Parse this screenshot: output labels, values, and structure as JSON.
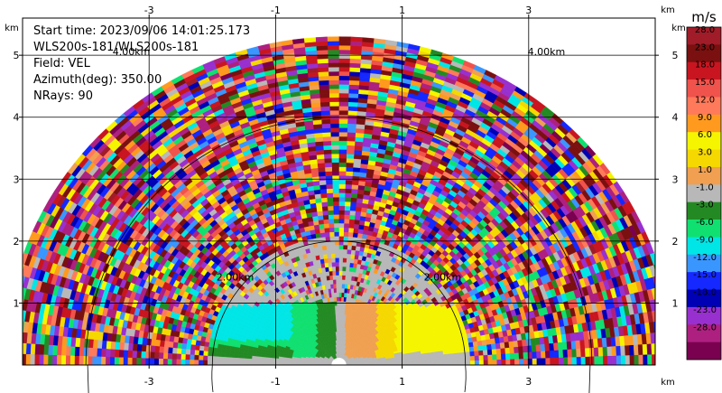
{
  "chart_data": {
    "type": "heatmap",
    "subtype": "radar-rhi-velocity",
    "info_lines": [
      "Start time: 2023/09/06 14:01:25.173",
      "WLS200s-181/WLS200s-181",
      "Field: VEL",
      "Azimuth(deg): 350.00",
      "NRays: 90"
    ],
    "x_unit": "km",
    "y_unit": "km",
    "x_ticks": [
      "-3",
      "-1",
      "1",
      "3"
    ],
    "y_ticks": [
      "1",
      "2",
      "3",
      "4",
      "5"
    ],
    "x_range": [
      -5.0,
      5.0
    ],
    "y_range": [
      0.0,
      5.6
    ],
    "grid": true,
    "range_rings": [
      {
        "label": "2.00km",
        "radius": 2.0
      },
      {
        "label": "4.00km",
        "radius": 4.0
      }
    ],
    "max_range_km": 5.25,
    "colorbar": {
      "unit": "m/s",
      "labels": [
        "28.0",
        "23.0",
        "18.0",
        "15.0",
        "12.0",
        "9.0",
        "6.0",
        "3.0",
        "1.0",
        "-1.0",
        "-3.0",
        "-6.0",
        "-9.0",
        "-12.0",
        "-15.0",
        "-18.0",
        "-23.0",
        "-28.0"
      ],
      "colors": [
        "#a01c28",
        "#7a1010",
        "#c91520",
        "#f0534b",
        "#ff7a5a",
        "#ff9a1e",
        "#f5f500",
        "#f5d800",
        "#f0a050",
        "#b8b8b8",
        "#238a23",
        "#10e070",
        "#00e6e6",
        "#3a96ff",
        "#1428ff",
        "#0000b4",
        "#9830d0",
        "#ae2080",
        "#7a0050"
      ]
    },
    "regions": [
      {
        "name": "near-range negative velocity (toward radar)",
        "x_from_km": -2.6,
        "x_to_km": -0.1,
        "max_height_km": 1.05,
        "value_ms": -9.0
      },
      {
        "name": "near-range positive velocity (away from radar)",
        "x_from_km": 0.05,
        "x_to_km": 2.6,
        "max_height_km": 1.05,
        "value_ms": 6.0
      },
      {
        "name": "noise beyond valid range",
        "from_radius_km": 2.1,
        "to_radius_km": 5.25
      }
    ]
  }
}
